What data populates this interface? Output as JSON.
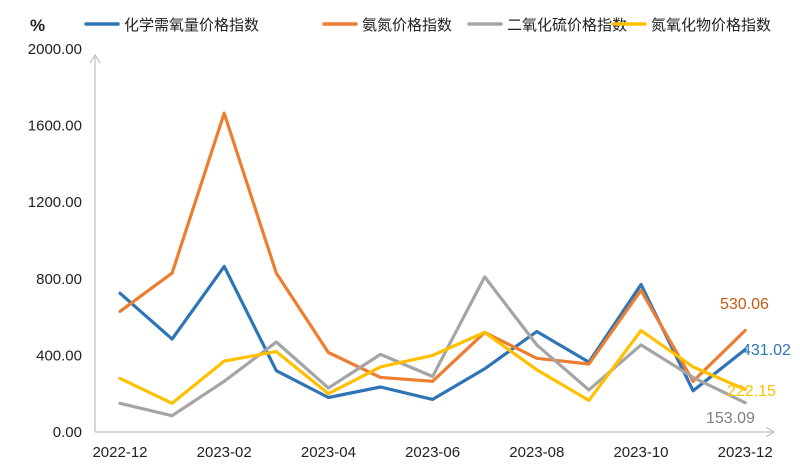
{
  "chart_data": {
    "type": "line",
    "title": "",
    "ylabel": "%",
    "xlabel": "",
    "ylim": [
      0,
      2000
    ],
    "y_ticks": [
      "0.00",
      "400.00",
      "800.00",
      "1200.00",
      "1600.00",
      "2000.00"
    ],
    "x": [
      "2022-12",
      "2023-01",
      "2023-02",
      "2023-03",
      "2023-04",
      "2023-05",
      "2023-06",
      "2023-07",
      "2023-08",
      "2023-09",
      "2023-10",
      "2023-11",
      "2023-12"
    ],
    "x_tick_labels": [
      "2022-12",
      "2023-02",
      "2023-04",
      "2023-06",
      "2023-08",
      "2023-10",
      "2023-12"
    ],
    "legend_position": "top",
    "grid": false,
    "series": [
      {
        "name": "化学需氧量价格指数",
        "color": "#2E75B6",
        "values": [
          725,
          485,
          865,
          320,
          180,
          235,
          170,
          330,
          525,
          365,
          770,
          215,
          431.02
        ],
        "end_label": "431.02"
      },
      {
        "name": "氨氮价格指数",
        "color": "#ED7D31",
        "values": [
          630,
          830,
          1665,
          830,
          415,
          285,
          265,
          520,
          385,
          355,
          740,
          265,
          530.06
        ],
        "end_label": "530.06"
      },
      {
        "name": "二氧化硫价格指数",
        "color": "#A5A5A5",
        "values": [
          150,
          85,
          265,
          470,
          230,
          405,
          290,
          810,
          455,
          220,
          455,
          285,
          153.09
        ],
        "end_label": "153.09"
      },
      {
        "name": "氮氧化物价格指数",
        "color": "#FFC000",
        "values": [
          280,
          150,
          370,
          420,
          200,
          340,
          400,
          520,
          325,
          165,
          530,
          340,
          222.15
        ],
        "end_label": "222.15"
      }
    ]
  }
}
